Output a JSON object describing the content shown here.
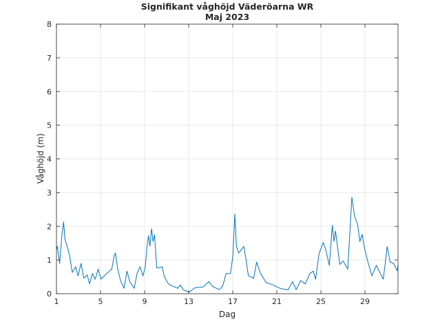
{
  "chart_data": {
    "type": "line",
    "title": "Signifikant våghöjd Väderöarna WR",
    "subtitle": "Maj 2023",
    "xlabel": "Dag",
    "ylabel": "Våghöjd (m)",
    "xlim": [
      1,
      32
    ],
    "ylim": [
      0,
      8
    ],
    "xticks": [
      1,
      5,
      9,
      13,
      17,
      21,
      25,
      29
    ],
    "yticks": [
      0,
      1,
      2,
      3,
      4,
      5,
      6,
      7,
      8
    ],
    "grid": true,
    "line_color": "#0072bd",
    "series": [
      {
        "x": [
          1.0,
          1.08,
          1.29,
          1.5,
          1.65,
          1.77,
          2.02,
          2.19,
          2.44,
          2.75,
          2.96,
          3.23,
          3.48,
          3.79,
          4.0,
          4.27,
          4.52,
          4.79,
          5.04,
          5.56,
          6.02,
          6.23,
          6.35,
          6.56,
          6.81,
          7.13,
          7.4,
          7.65,
          8.06,
          8.31,
          8.58,
          8.85,
          9.06,
          9.21,
          9.35,
          9.48,
          9.63,
          9.77,
          9.9,
          10.1,
          10.35,
          10.6,
          10.77,
          11.08,
          11.29,
          12.02,
          12.23,
          12.54,
          13.06,
          13.58,
          14.31,
          14.83,
          15.15,
          15.77,
          16.08,
          16.4,
          16.8,
          17.02,
          17.19,
          17.33,
          17.54,
          17.79,
          18.0,
          18.21,
          18.42,
          18.9,
          19.17,
          19.52,
          20.04,
          20.67,
          21.29,
          22.02,
          22.44,
          22.75,
          23.17,
          23.58,
          24.0,
          24.31,
          24.52,
          24.83,
          25.21,
          25.46,
          25.77,
          26.04,
          26.19,
          26.33,
          26.71,
          27.02,
          27.44,
          27.81,
          28.06,
          28.33,
          28.54,
          28.75,
          28.96,
          29.21,
          29.63,
          30.04,
          30.35,
          30.67,
          31.02,
          31.29,
          31.6,
          31.92,
          32.0
        ],
        "y": [
          1.3,
          1.41,
          0.9,
          1.75,
          2.13,
          1.62,
          1.35,
          1.14,
          0.63,
          0.8,
          0.53,
          0.9,
          0.46,
          0.56,
          0.29,
          0.6,
          0.43,
          0.73,
          0.43,
          0.6,
          0.73,
          1.11,
          1.21,
          0.73,
          0.39,
          0.16,
          0.67,
          0.36,
          0.16,
          0.6,
          0.8,
          0.53,
          0.8,
          1.41,
          1.72,
          1.41,
          1.93,
          1.55,
          1.75,
          0.77,
          0.77,
          0.8,
          0.53,
          0.33,
          0.26,
          0.16,
          0.26,
          0.11,
          0.05,
          0.18,
          0.2,
          0.36,
          0.22,
          0.12,
          0.22,
          0.6,
          0.6,
          1.14,
          2.37,
          1.41,
          1.21,
          1.31,
          1.41,
          1.0,
          0.53,
          0.46,
          0.94,
          0.6,
          0.33,
          0.26,
          0.16,
          0.11,
          0.36,
          0.12,
          0.39,
          0.29,
          0.6,
          0.67,
          0.43,
          1.18,
          1.52,
          1.28,
          0.84,
          2.03,
          1.55,
          1.86,
          0.87,
          0.97,
          0.73,
          2.86,
          2.3,
          2.06,
          1.55,
          1.76,
          1.35,
          1.01,
          0.53,
          0.84,
          0.63,
          0.43,
          1.4,
          0.94,
          0.9,
          0.68,
          0.84
        ]
      }
    ]
  }
}
